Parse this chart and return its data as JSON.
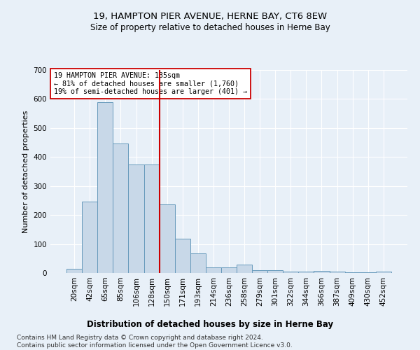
{
  "title1": "19, HAMPTON PIER AVENUE, HERNE BAY, CT6 8EW",
  "title2": "Size of property relative to detached houses in Herne Bay",
  "xlabel": "Distribution of detached houses by size in Herne Bay",
  "ylabel": "Number of detached properties",
  "bar_labels": [
    "20sqm",
    "42sqm",
    "65sqm",
    "85sqm",
    "106sqm",
    "128sqm",
    "150sqm",
    "171sqm",
    "193sqm",
    "214sqm",
    "236sqm",
    "258sqm",
    "279sqm",
    "301sqm",
    "322sqm",
    "344sqm",
    "366sqm",
    "387sqm",
    "409sqm",
    "430sqm",
    "452sqm"
  ],
  "bar_values": [
    15,
    247,
    588,
    447,
    375,
    375,
    237,
    118,
    68,
    20,
    20,
    30,
    10,
    10,
    5,
    5,
    8,
    5,
    2,
    2,
    5
  ],
  "bar_color": "#c8d8e8",
  "bar_edge_color": "#6699bb",
  "vline_x_idx": 6,
  "vline_color": "#cc0000",
  "annotation_text": "19 HAMPTON PIER AVENUE: 135sqm\n← 81% of detached houses are smaller (1,760)\n19% of semi-detached houses are larger (401) →",
  "annotation_box_color": "#ffffff",
  "annotation_box_edge": "#cc0000",
  "ylim": [
    0,
    700
  ],
  "yticks": [
    0,
    100,
    200,
    300,
    400,
    500,
    600,
    700
  ],
  "footnote": "Contains HM Land Registry data © Crown copyright and database right 2024.\nContains public sector information licensed under the Open Government Licence v3.0.",
  "bg_color": "#e8f0f8",
  "plot_bg_color": "#e8f0f8",
  "grid_color": "#ffffff",
  "title1_fontsize": 9.5,
  "title2_fontsize": 8.5,
  "xlabel_fontsize": 8.5,
  "ylabel_fontsize": 8,
  "tick_fontsize": 7.5,
  "footnote_fontsize": 6.5
}
